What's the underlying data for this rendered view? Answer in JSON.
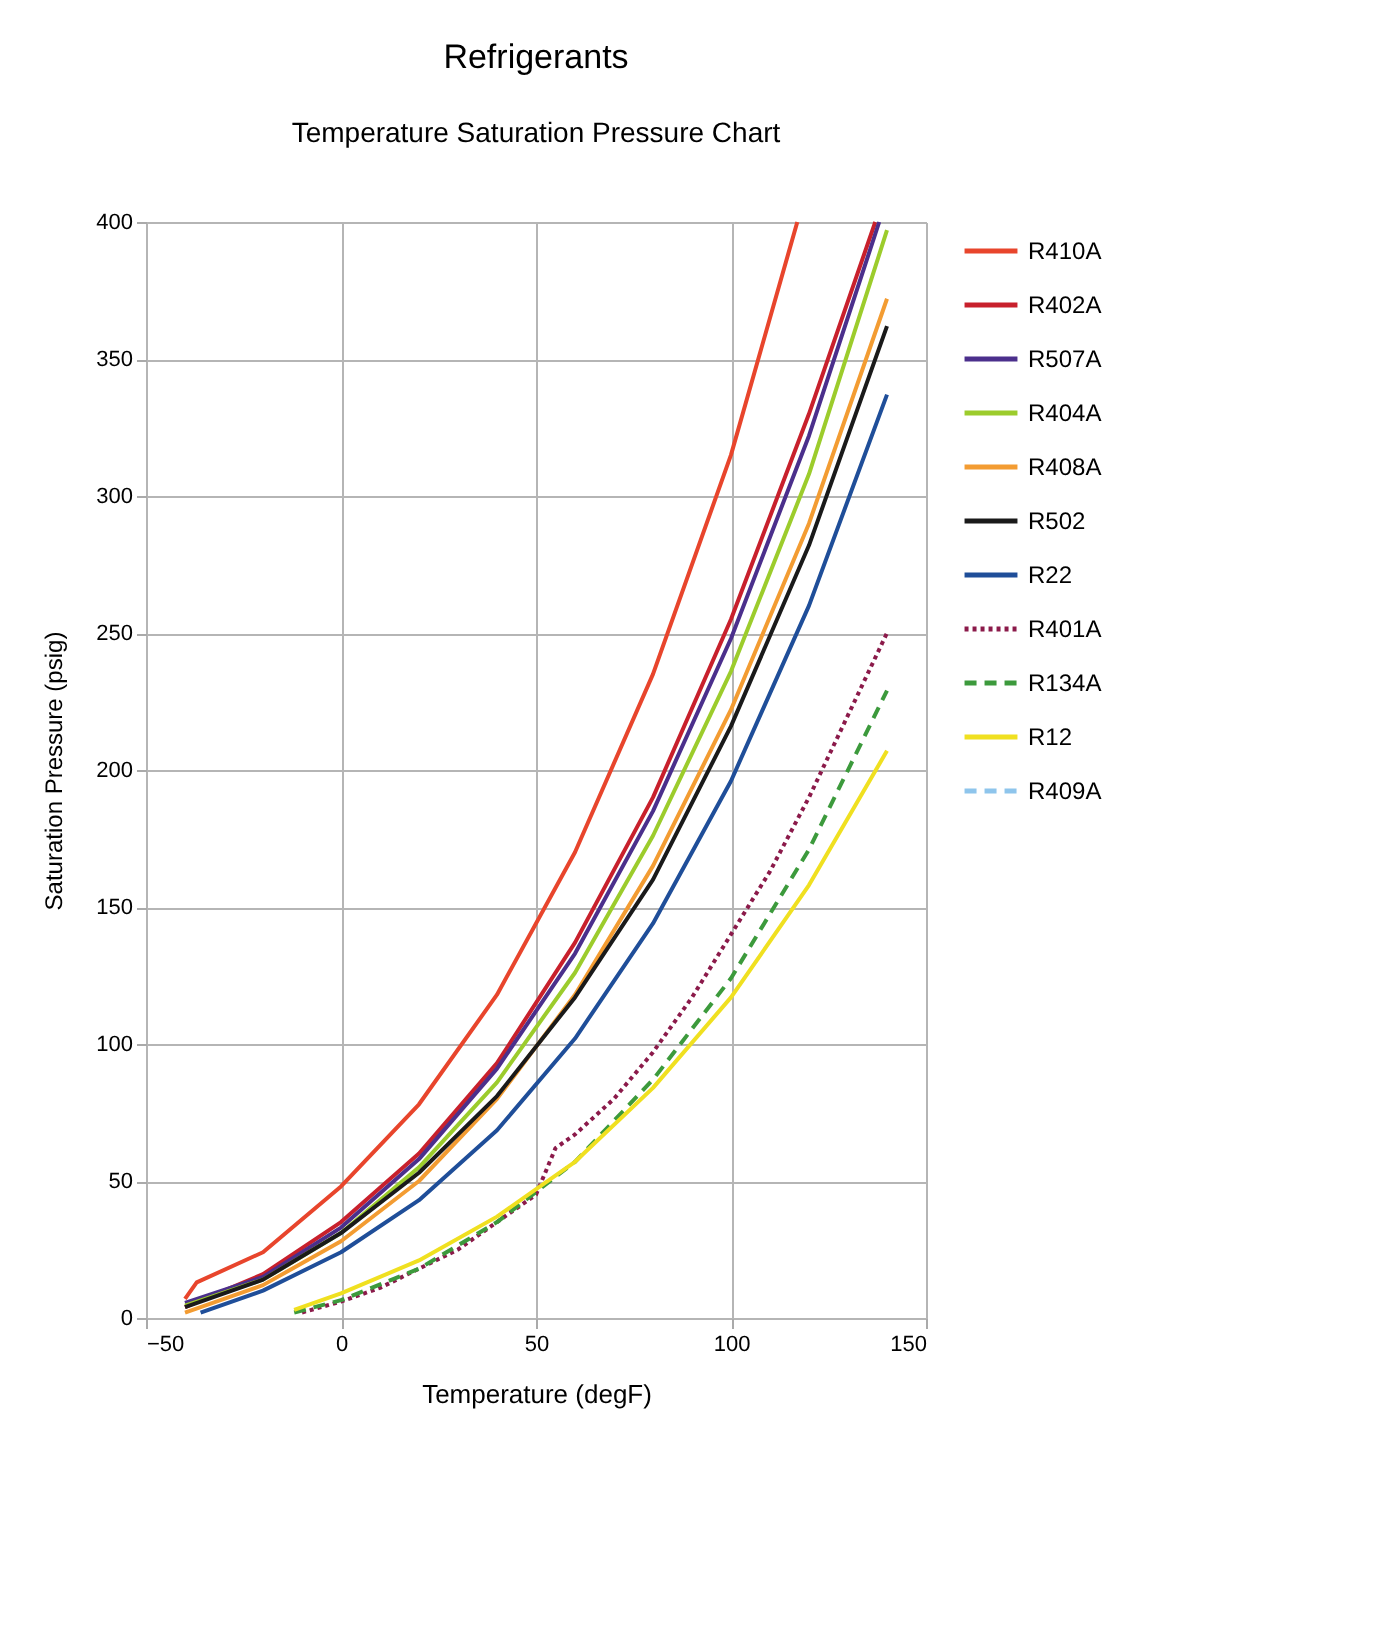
{
  "chart_data": {
    "type": "line",
    "title": "Refrigerants",
    "subtitle": "Temperature Saturation Pressure Chart",
    "xlabel": "Temperature (degF)",
    "ylabel": "Saturation Pressure (psig)",
    "xlim": [
      -50,
      150
    ],
    "xticks": [
      -50,
      0,
      50,
      100,
      150
    ],
    "ylim": [
      0,
      400
    ],
    "yticks": [
      0,
      50,
      100,
      150,
      200,
      250,
      300,
      350,
      400
    ],
    "grid": true,
    "legend": "right",
    "series": [
      {
        "name": "R410A",
        "color": "#e8452c",
        "line_style": "solid",
        "x": [
          -40,
          -37,
          -20,
          0,
          20,
          40,
          60,
          80,
          100,
          117
        ],
        "values": [
          7,
          13,
          24,
          48,
          78,
          118,
          170,
          235,
          315,
          400
        ]
      },
      {
        "name": "R402A",
        "color": "#c8202c",
        "line_style": "solid",
        "x": [
          -40,
          -20,
          0,
          20,
          40,
          60,
          80,
          100,
          120,
          137
        ],
        "values": [
          4,
          16,
          35,
          60,
          93,
          137,
          190,
          255,
          330,
          400
        ]
      },
      {
        "name": "R507A",
        "color": "#4b2f8c",
        "line_style": "solid",
        "x": [
          -40,
          -20,
          0,
          20,
          40,
          60,
          80,
          100,
          120,
          138
        ],
        "values": [
          5.5,
          15,
          33,
          58,
          91,
          133,
          185,
          248,
          322,
          400
        ]
      },
      {
        "name": "R404A",
        "color": "#9ccc2c",
        "line_style": "solid",
        "x": [
          -40,
          -20,
          0,
          20,
          40,
          60,
          80,
          100,
          120,
          140
        ],
        "values": [
          4.5,
          14,
          31,
          55,
          86,
          126,
          176,
          236,
          308,
          397
        ]
      },
      {
        "name": "R408A",
        "color": "#f39c32",
        "line_style": "solid",
        "x": [
          -40,
          -20,
          0,
          20,
          40,
          60,
          80,
          100,
          120,
          140
        ],
        "values": [
          2,
          12,
          28,
          50,
          80,
          118,
          165,
          222,
          290,
          372
        ]
      },
      {
        "name": "R502",
        "color": "#1a1a1a",
        "line_style": "solid",
        "x": [
          -40,
          -20,
          0,
          20,
          40,
          60,
          80,
          100,
          120,
          140
        ],
        "values": [
          4,
          14,
          31,
          53,
          81,
          117,
          160,
          216,
          282,
          362
        ]
      },
      {
        "name": "R22",
        "color": "#1f4e99",
        "line_style": "solid",
        "x": [
          -36,
          -20,
          0,
          20,
          40,
          60,
          80,
          100,
          120,
          140
        ],
        "values": [
          2,
          10,
          24,
          43,
          68.5,
          102,
          144,
          196,
          260,
          337
        ]
      },
      {
        "name": "R401A",
        "color": "#8b1a4a",
        "line_style": "dotted",
        "x": [
          -10,
          0,
          10,
          20,
          30,
          40,
          50,
          55,
          60,
          70,
          80,
          90,
          100,
          110,
          120,
          130,
          140
        ],
        "values": [
          2,
          6,
          11,
          18,
          25,
          35,
          45,
          62,
          67,
          80,
          97,
          117,
          140,
          163,
          190,
          220,
          250
        ]
      },
      {
        "name": "R134A",
        "color": "#3c9a3c",
        "line_style": "dashed",
        "x": [
          -12,
          0,
          20,
          40,
          60,
          80,
          100,
          120,
          140
        ],
        "values": [
          2,
          6.5,
          18,
          35,
          57,
          87,
          124,
          171,
          229
        ]
      },
      {
        "name": "R12",
        "color": "#f0e020",
        "line_style": "solid",
        "x": [
          -12,
          0,
          20,
          40,
          60,
          80,
          100,
          120,
          140
        ],
        "values": [
          3,
          9,
          21,
          37,
          57,
          84,
          117,
          158,
          207
        ]
      },
      {
        "name": "R409A",
        "color": "#8ec5ec",
        "line_style": "dashed"
      }
    ]
  }
}
